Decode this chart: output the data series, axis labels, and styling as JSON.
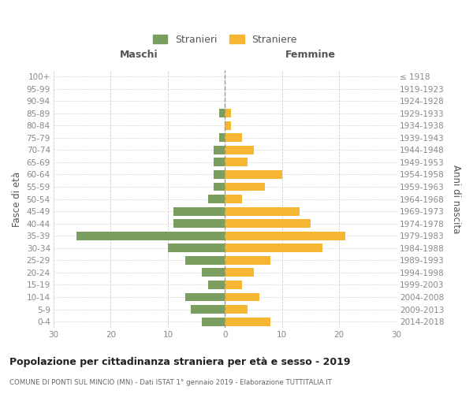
{
  "age_groups": [
    "0-4",
    "5-9",
    "10-14",
    "15-19",
    "20-24",
    "25-29",
    "30-34",
    "35-39",
    "40-44",
    "45-49",
    "50-54",
    "55-59",
    "60-64",
    "65-69",
    "70-74",
    "75-79",
    "80-84",
    "85-89",
    "90-94",
    "95-99",
    "100+"
  ],
  "birth_years": [
    "2014-2018",
    "2009-2013",
    "2004-2008",
    "1999-2003",
    "1994-1998",
    "1989-1993",
    "1984-1988",
    "1979-1983",
    "1974-1978",
    "1969-1973",
    "1964-1968",
    "1959-1963",
    "1954-1958",
    "1949-1953",
    "1944-1948",
    "1939-1943",
    "1934-1938",
    "1929-1933",
    "1924-1928",
    "1919-1923",
    "≤ 1918"
  ],
  "maschi": [
    4,
    6,
    7,
    3,
    4,
    7,
    10,
    26,
    9,
    9,
    3,
    2,
    2,
    2,
    2,
    1,
    0,
    1,
    0,
    0,
    0
  ],
  "femmine": [
    8,
    4,
    6,
    3,
    5,
    8,
    17,
    21,
    15,
    13,
    3,
    7,
    10,
    4,
    5,
    3,
    1,
    1,
    0,
    0,
    0
  ],
  "color_maschi": "#7a9e5f",
  "color_femmine": "#f5b731",
  "title": "Popolazione per cittadinanza straniera per età e sesso - 2019",
  "subtitle": "COMUNE DI PONTI SUL MINCIO (MN) - Dati ISTAT 1° gennaio 2019 - Elaborazione TUTTITALIA.IT",
  "xlabel_left": "Maschi",
  "xlabel_right": "Femmine",
  "ylabel_left": "Fasce di età",
  "ylabel_right": "Anni di nascita",
  "legend_maschi": "Stranieri",
  "legend_femmine": "Straniere",
  "xlim": 30,
  "xticks": [
    -30,
    -20,
    -10,
    0,
    10,
    20,
    30
  ],
  "background_color": "#ffffff",
  "grid_color": "#cccccc",
  "tick_color": "#888888",
  "header_color": "#555555",
  "title_color": "#222222",
  "subtitle_color": "#666666"
}
